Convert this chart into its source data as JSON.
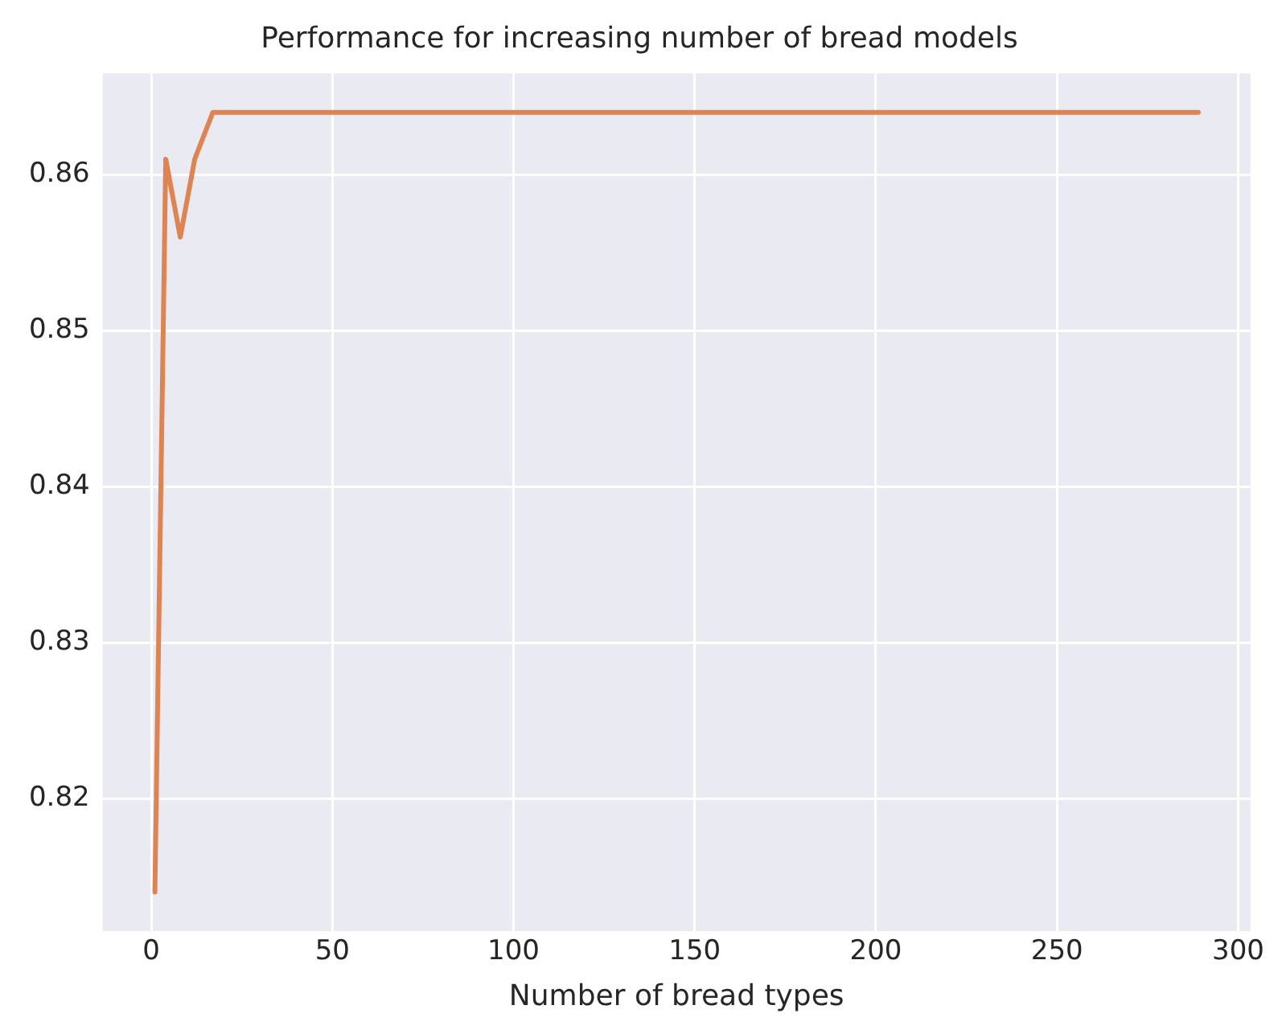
{
  "chart_data": {
    "type": "line",
    "title": "Performance for increasing number of bread models",
    "xlabel": "Number of bread types",
    "x": [
      1,
      4,
      8,
      12,
      17,
      289
    ],
    "series": [
      {
        "color": "#dd8452",
        "values": [
          0.814,
          0.861,
          0.856,
          0.861,
          0.864,
          0.864
        ]
      }
    ],
    "xlim": [
      -13.4,
      303.4
    ],
    "xticks": [
      0,
      50,
      100,
      150,
      200,
      250,
      300
    ],
    "ylim": [
      0.8115,
      0.8665
    ],
    "yticks": [
      0.82,
      0.83,
      0.84,
      0.85,
      0.86
    ],
    "grid": true,
    "legend": false,
    "marker": "none",
    "line_style": "solid"
  }
}
